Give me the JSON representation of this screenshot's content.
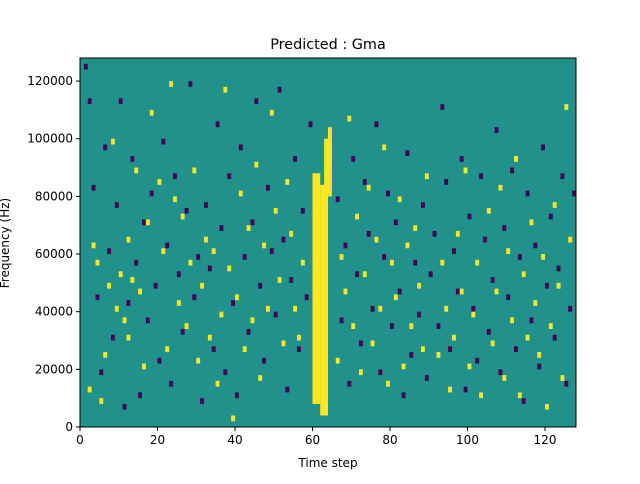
{
  "chart_data": {
    "type": "heatmap",
    "title": "Predicted : Gma",
    "xlabel": "Time step",
    "ylabel": "Frequency (Hz)",
    "xlim": [
      0,
      128
    ],
    "ylim": [
      0,
      128000
    ],
    "x_ticks": [
      0,
      20,
      40,
      60,
      80,
      100,
      120
    ],
    "y_ticks": [
      0,
      20000,
      40000,
      60000,
      80000,
      100000,
      120000
    ],
    "x_tick_labels": [
      "0",
      "20",
      "40",
      "60",
      "80",
      "100",
      "120"
    ],
    "y_tick_labels": [
      "0",
      "20000",
      "40000",
      "60000",
      "80000",
      "100000",
      "120000"
    ],
    "n_freq_bins": 128,
    "colormap": {
      "low": "#440154",
      "mid": "#21918c",
      "high": "#fde725"
    },
    "background_level": "mid",
    "high_regions": [
      {
        "t": [
          60,
          62
        ],
        "f": [
          8000,
          88000
        ]
      },
      {
        "t": [
          62,
          64
        ],
        "f": [
          4000,
          84000
        ]
      },
      {
        "t": [
          63,
          65
        ],
        "f": [
          80000,
          100000
        ]
      },
      {
        "t": [
          64,
          65
        ],
        "f": [
          92000,
          104000
        ]
      }
    ],
    "high_cells": [
      [
        2,
        12000
      ],
      [
        3,
        62000
      ],
      [
        4,
        56000
      ],
      [
        5,
        8000
      ],
      [
        6,
        24000
      ],
      [
        7,
        48000
      ],
      [
        8,
        98000
      ],
      [
        9,
        40000
      ],
      [
        10,
        52000
      ],
      [
        11,
        36000
      ],
      [
        12,
        64000
      ],
      [
        12,
        30000
      ],
      [
        13,
        50000
      ],
      [
        14,
        88000
      ],
      [
        15,
        46000
      ],
      [
        16,
        20000
      ],
      [
        17,
        70000
      ],
      [
        18,
        108000
      ],
      [
        20,
        84000
      ],
      [
        21,
        60000
      ],
      [
        22,
        26000
      ],
      [
        23,
        118000
      ],
      [
        24,
        78000
      ],
      [
        25,
        42000
      ],
      [
        26,
        72000
      ],
      [
        27,
        34000
      ],
      [
        28,
        56000
      ],
      [
        29,
        88000
      ],
      [
        30,
        22000
      ],
      [
        31,
        48000
      ],
      [
        32,
        64000
      ],
      [
        33,
        30000
      ],
      [
        34,
        60000
      ],
      [
        35,
        14000
      ],
      [
        36,
        38000
      ],
      [
        37,
        116000
      ],
      [
        38,
        54000
      ],
      [
        39,
        2000
      ],
      [
        40,
        44000
      ],
      [
        41,
        80000
      ],
      [
        42,
        26000
      ],
      [
        43,
        68000
      ],
      [
        44,
        36000
      ],
      [
        45,
        90000
      ],
      [
        46,
        16000
      ],
      [
        47,
        62000
      ],
      [
        48,
        40000
      ],
      [
        49,
        108000
      ],
      [
        50,
        74000
      ],
      [
        51,
        50000
      ],
      [
        52,
        28000
      ],
      [
        53,
        84000
      ],
      [
        54,
        66000
      ],
      [
        55,
        40000
      ],
      [
        56,
        30000
      ],
      [
        57,
        56000
      ],
      [
        66,
        22000
      ],
      [
        67,
        58000
      ],
      [
        68,
        46000
      ],
      [
        69,
        106000
      ],
      [
        70,
        34000
      ],
      [
        71,
        72000
      ],
      [
        72,
        18000
      ],
      [
        73,
        52000
      ],
      [
        74,
        82000
      ],
      [
        75,
        28000
      ],
      [
        76,
        64000
      ],
      [
        77,
        40000
      ],
      [
        78,
        96000
      ],
      [
        79,
        14000
      ],
      [
        80,
        56000
      ],
      [
        81,
        44000
      ],
      [
        82,
        78000
      ],
      [
        83,
        20000
      ],
      [
        84,
        62000
      ],
      [
        85,
        34000
      ],
      [
        86,
        68000
      ],
      [
        87,
        48000
      ],
      [
        88,
        26000
      ],
      [
        89,
        86000
      ],
      [
        92,
        24000
      ],
      [
        93,
        56000
      ],
      [
        94,
        40000
      ],
      [
        95,
        12000
      ],
      [
        96,
        30000
      ],
      [
        97,
        66000
      ],
      [
        98,
        46000
      ],
      [
        99,
        88000
      ],
      [
        100,
        20000
      ],
      [
        101,
        38000
      ],
      [
        102,
        56000
      ],
      [
        103,
        10000
      ],
      [
        105,
        74000
      ],
      [
        106,
        28000
      ],
      [
        107,
        46000
      ],
      [
        108,
        82000
      ],
      [
        109,
        16000
      ],
      [
        110,
        60000
      ],
      [
        111,
        36000
      ],
      [
        112,
        92000
      ],
      [
        113,
        10000
      ],
      [
        114,
        52000
      ],
      [
        115,
        30000
      ],
      [
        116,
        70000
      ],
      [
        117,
        42000
      ],
      [
        118,
        24000
      ],
      [
        119,
        58000
      ],
      [
        120,
        6000
      ],
      [
        121,
        34000
      ],
      [
        122,
        76000
      ],
      [
        123,
        48000
      ],
      [
        124,
        16000
      ],
      [
        125,
        110000
      ],
      [
        126,
        64000
      ]
    ],
    "low_cells": [
      [
        1,
        124000
      ],
      [
        2,
        112000
      ],
      [
        3,
        82000
      ],
      [
        4,
        44000
      ],
      [
        5,
        18000
      ],
      [
        6,
        96000
      ],
      [
        7,
        60000
      ],
      [
        8,
        30000
      ],
      [
        9,
        76000
      ],
      [
        10,
        112000
      ],
      [
        11,
        6000
      ],
      [
        12,
        42000
      ],
      [
        13,
        92000
      ],
      [
        14,
        56000
      ],
      [
        15,
        10000
      ],
      [
        16,
        70000
      ],
      [
        17,
        36000
      ],
      [
        18,
        80000
      ],
      [
        19,
        48000
      ],
      [
        20,
        22000
      ],
      [
        21,
        98000
      ],
      [
        22,
        62000
      ],
      [
        23,
        14000
      ],
      [
        24,
        86000
      ],
      [
        25,
        52000
      ],
      [
        26,
        32000
      ],
      [
        27,
        74000
      ],
      [
        28,
        118000
      ],
      [
        29,
        44000
      ],
      [
        30,
        58000
      ],
      [
        31,
        8000
      ],
      [
        32,
        76000
      ],
      [
        33,
        54000
      ],
      [
        34,
        26000
      ],
      [
        35,
        104000
      ],
      [
        36,
        68000
      ],
      [
        37,
        18000
      ],
      [
        38,
        86000
      ],
      [
        39,
        42000
      ],
      [
        40,
        10000
      ],
      [
        41,
        96000
      ],
      [
        42,
        58000
      ],
      [
        43,
        32000
      ],
      [
        44,
        70000
      ],
      [
        45,
        112000
      ],
      [
        46,
        48000
      ],
      [
        47,
        22000
      ],
      [
        48,
        82000
      ],
      [
        49,
        60000
      ],
      [
        50,
        38000
      ],
      [
        51,
        116000
      ],
      [
        52,
        64000
      ],
      [
        53,
        12000
      ],
      [
        54,
        50000
      ],
      [
        55,
        92000
      ],
      [
        56,
        26000
      ],
      [
        57,
        74000
      ],
      [
        58,
        44000
      ],
      [
        59,
        104000
      ],
      [
        66,
        78000
      ],
      [
        67,
        36000
      ],
      [
        68,
        62000
      ],
      [
        69,
        14000
      ],
      [
        70,
        92000
      ],
      [
        71,
        52000
      ],
      [
        72,
        28000
      ],
      [
        73,
        84000
      ],
      [
        74,
        66000
      ],
      [
        75,
        40000
      ],
      [
        76,
        104000
      ],
      [
        77,
        18000
      ],
      [
        78,
        58000
      ],
      [
        79,
        80000
      ],
      [
        80,
        34000
      ],
      [
        81,
        70000
      ],
      [
        82,
        46000
      ],
      [
        83,
        10000
      ],
      [
        84,
        94000
      ],
      [
        85,
        24000
      ],
      [
        86,
        56000
      ],
      [
        87,
        38000
      ],
      [
        88,
        76000
      ],
      [
        89,
        16000
      ],
      [
        90,
        52000
      ],
      [
        91,
        66000
      ],
      [
        92,
        34000
      ],
      [
        93,
        110000
      ],
      [
        94,
        84000
      ],
      [
        95,
        26000
      ],
      [
        96,
        60000
      ],
      [
        97,
        46000
      ],
      [
        98,
        92000
      ],
      [
        99,
        12000
      ],
      [
        100,
        72000
      ],
      [
        101,
        40000
      ],
      [
        102,
        22000
      ],
      [
        103,
        86000
      ],
      [
        104,
        64000
      ],
      [
        105,
        32000
      ],
      [
        106,
        50000
      ],
      [
        107,
        102000
      ],
      [
        108,
        18000
      ],
      [
        109,
        68000
      ],
      [
        110,
        44000
      ],
      [
        111,
        88000
      ],
      [
        112,
        26000
      ],
      [
        113,
        58000
      ],
      [
        114,
        8000
      ],
      [
        115,
        80000
      ],
      [
        116,
        36000
      ],
      [
        117,
        62000
      ],
      [
        118,
        20000
      ],
      [
        119,
        96000
      ],
      [
        120,
        48000
      ],
      [
        121,
        72000
      ],
      [
        122,
        30000
      ],
      [
        123,
        54000
      ],
      [
        124,
        86000
      ],
      [
        125,
        14000
      ],
      [
        126,
        40000
      ],
      [
        127,
        80000
      ]
    ]
  }
}
